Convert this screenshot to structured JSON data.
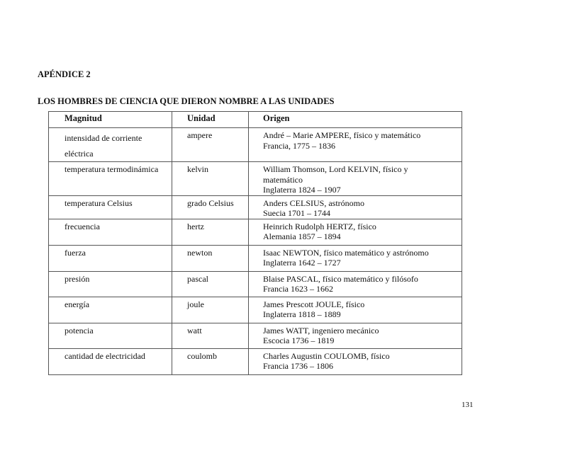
{
  "appendix_title": "APÉNDICE 2",
  "section_title": "LOS HOMBRES DE CIENCIA QUE DIERON NOMBRE A LAS UNIDADES",
  "table": {
    "headers": [
      "Magnitud",
      "Unidad",
      "Origen"
    ],
    "rows": [
      {
        "magnitud": [
          "intensidad de corriente",
          "eléctrica"
        ],
        "unidad": "ampere",
        "origen": [
          "André – Marie AMPERE,  físico y matemático",
          "Francia, 1775 – 1836"
        ]
      },
      {
        "magnitud": [
          "temperatura termodinámica"
        ],
        "unidad": "kelvin",
        "origen": [
          "William Thomson, Lord KELVIN,  físico y",
          "matemático",
          "Inglaterra 1824 – 1907"
        ]
      },
      {
        "magnitud": [
          "temperatura Celsius"
        ],
        "unidad": "grado Celsius",
        "origen": [
          "Anders CELSIUS,  astrónomo",
          "Suecia 1701 – 1744"
        ]
      },
      {
        "magnitud": [
          "frecuencia"
        ],
        "unidad": "hertz",
        "origen": [
          "Heinrich Rudolph HERTZ,  físico",
          "Alemania 1857 – 1894"
        ]
      },
      {
        "magnitud": [
          "fuerza"
        ],
        "unidad": "newton",
        "origen": [
          "Isaac NEWTON,   físico matemático y astrónomo",
          "Inglaterra 1642 – 1727"
        ]
      },
      {
        "magnitud": [
          "presión"
        ],
        "unidad": "pascal",
        "origen": [
          "Blaise PASCAL,   físico matemático y filósofo",
          "Francia 1623 – 1662"
        ]
      },
      {
        "magnitud": [
          "energía"
        ],
        "unidad": "joule",
        "origen": [
          "James Prescott JOULE,   físico",
          "Inglaterra 1818 – 1889"
        ]
      },
      {
        "magnitud": [
          "potencia"
        ],
        "unidad": "watt",
        "origen": [
          "James WATT,   ingeniero mecánico",
          "Escocia 1736 – 1819"
        ]
      },
      {
        "magnitud": [
          "cantidad de electricidad"
        ],
        "unidad": "coulomb",
        "origen": [
          "Charles Augustin COULOMB,   físico",
          "Francia 1736 – 1806"
        ]
      }
    ]
  },
  "page_number": "131"
}
